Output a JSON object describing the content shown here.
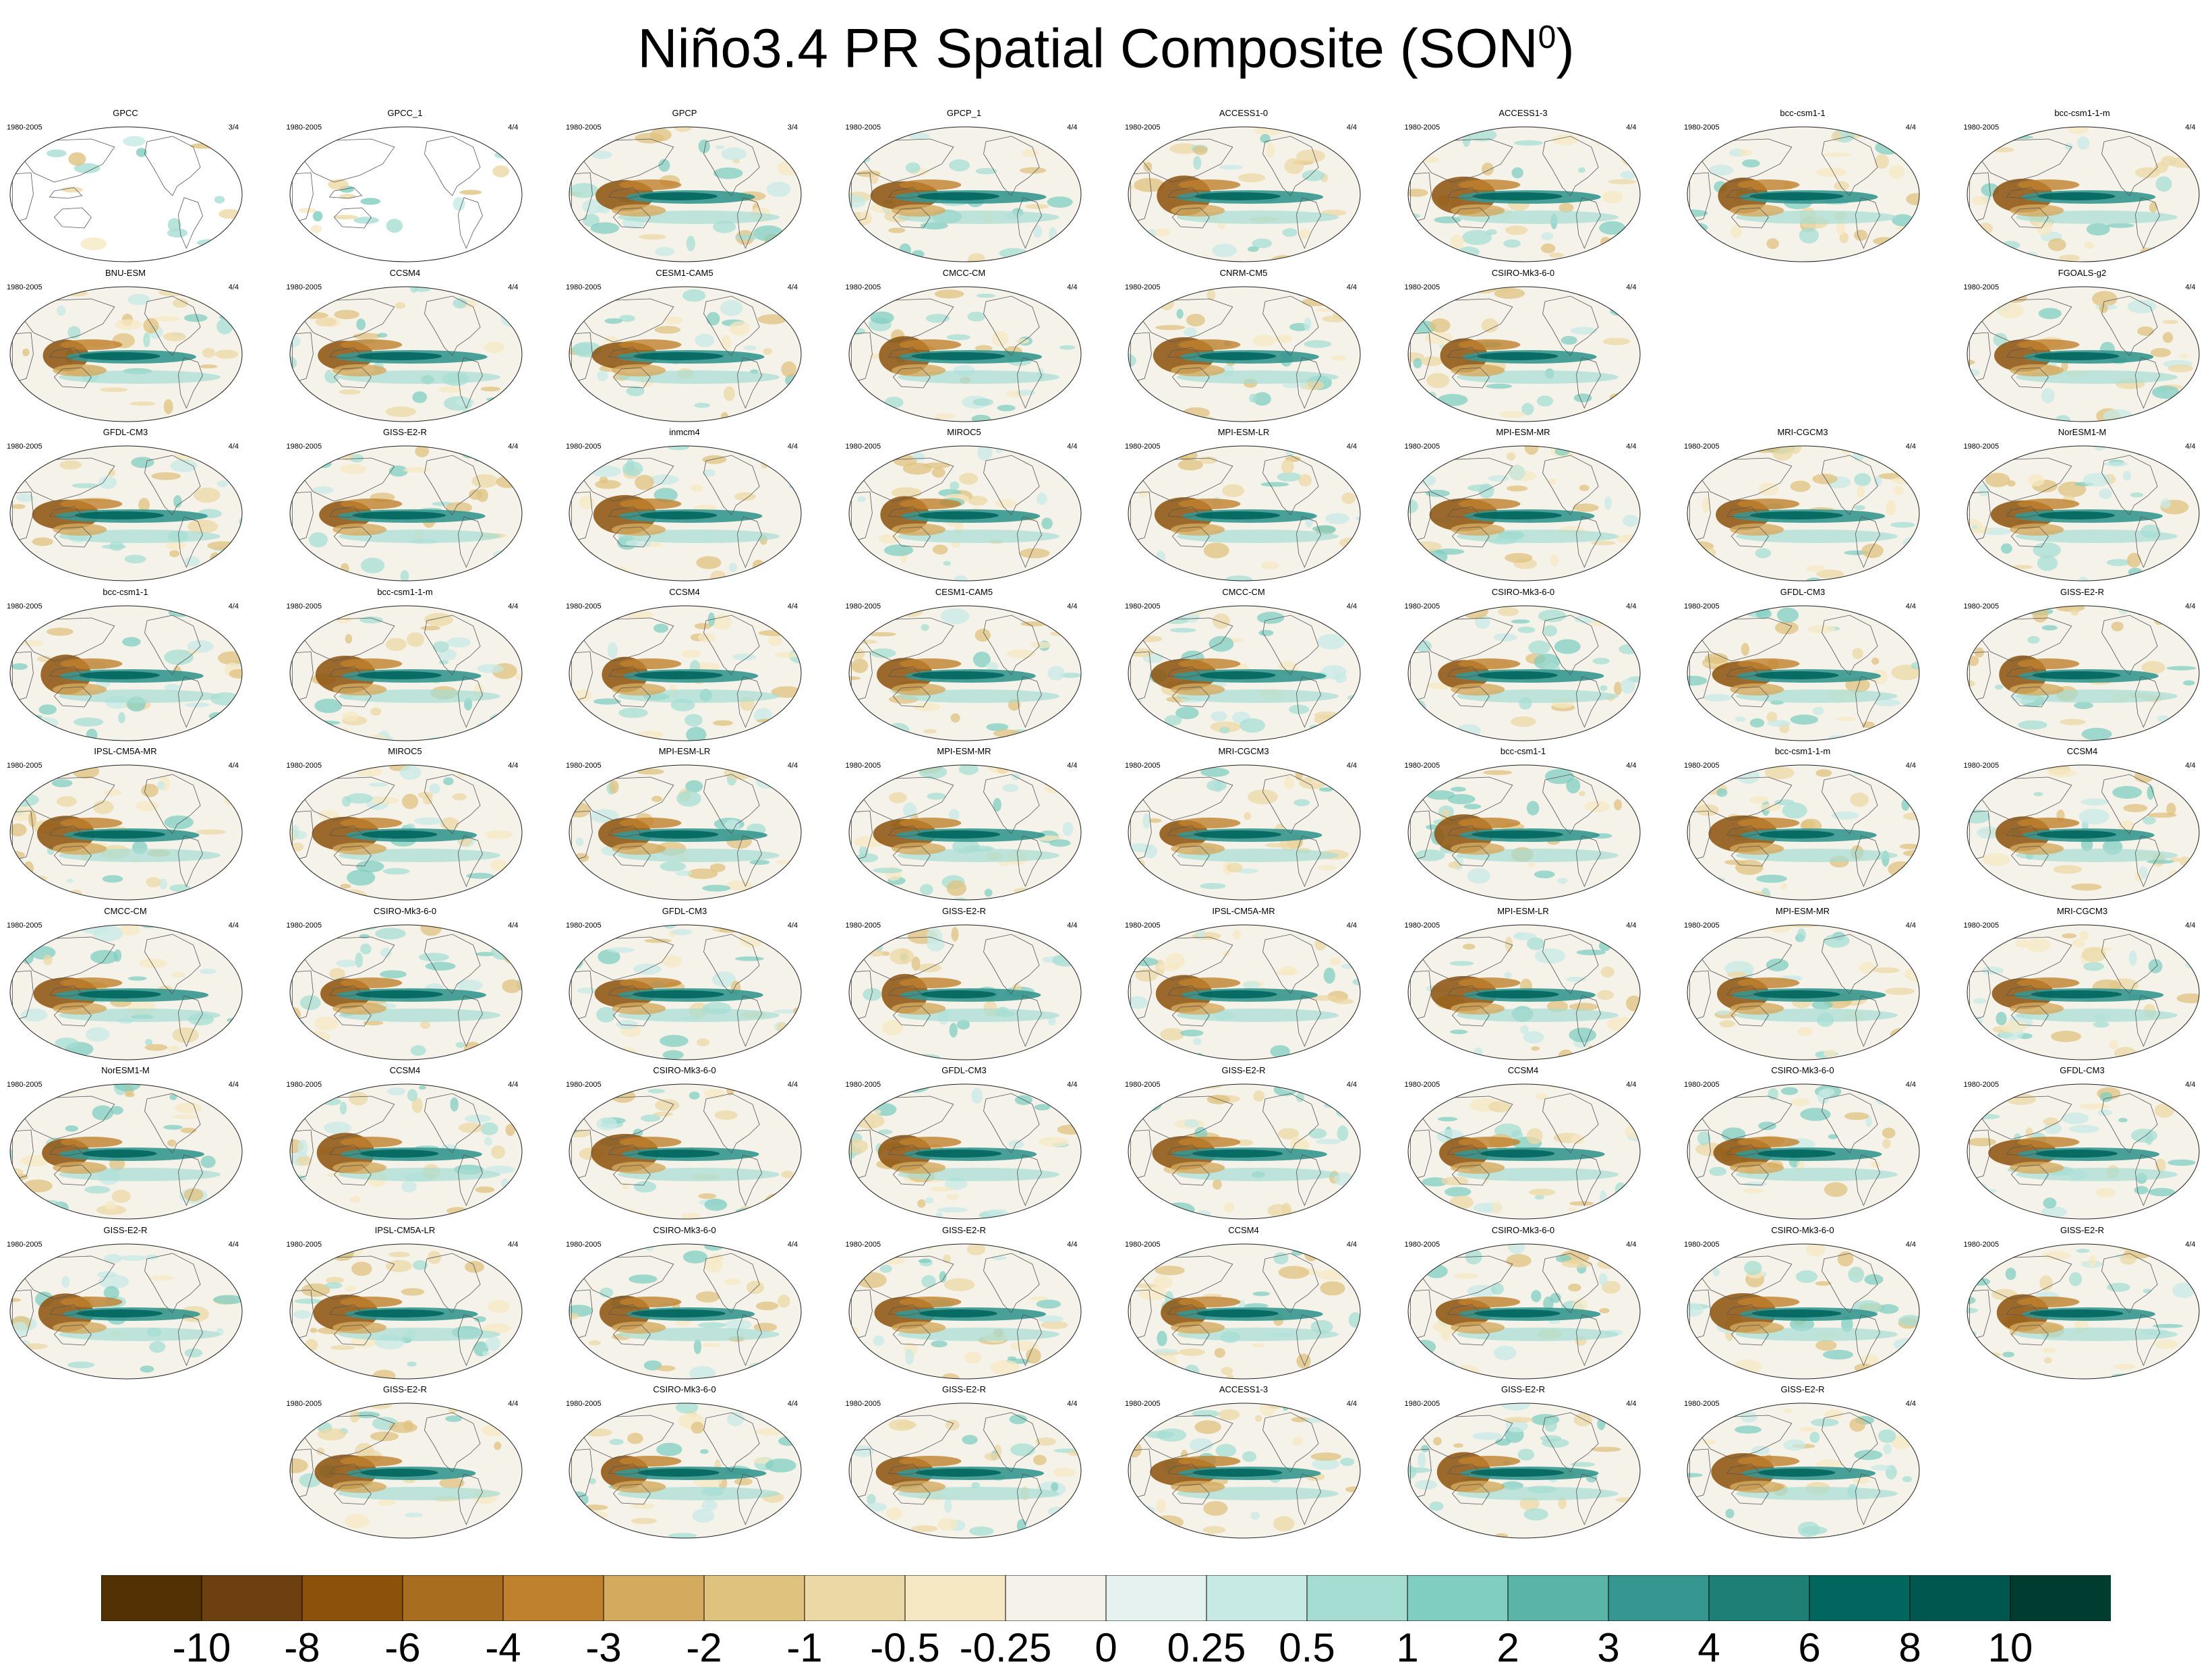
{
  "title": "Niño3.4 PR Spatial Composite (SON",
  "title_superscript": "0",
  "title_suffix": ")",
  "chart_data": {
    "type": "heatmap",
    "title": "Niño3.4 PR Spatial Composite (SON0)",
    "period": "1980-2005",
    "colorbar": {
      "levels": [
        "-10",
        "-8",
        "-6",
        "-4",
        "-3",
        "-2",
        "-1",
        "-0.5",
        "-0.25",
        "0",
        "0.25",
        "0.5",
        "1",
        "2",
        "3",
        "4",
        "6",
        "8",
        "10"
      ],
      "colors": [
        "#543005",
        "#6e4010",
        "#8c510a",
        "#a86d1e",
        "#bf812d",
        "#d4aa5f",
        "#dfc27d",
        "#ecd8a5",
        "#f6e8c3",
        "#f5f2ea",
        "#e6f2ef",
        "#c7eae5",
        "#a6ddd3",
        "#80cdc1",
        "#5ab4a8",
        "#35978f",
        "#1d7f76",
        "#01665e",
        "#00574f",
        "#003c30"
      ]
    },
    "panels": [
      {
        "row": 0,
        "col": 0,
        "name": "GPCC",
        "period": "1980-2005",
        "frac": "3/4",
        "land_only": true
      },
      {
        "row": 0,
        "col": 1,
        "name": "GPCC_1",
        "period": "1980-2005",
        "frac": "4/4",
        "land_only": true
      },
      {
        "row": 0,
        "col": 2,
        "name": "GPCP",
        "period": "1980-2005",
        "frac": "3/4"
      },
      {
        "row": 0,
        "col": 3,
        "name": "GPCP_1",
        "period": "1980-2005",
        "frac": "4/4"
      },
      {
        "row": 0,
        "col": 4,
        "name": "ACCESS1-0",
        "period": "1980-2005",
        "frac": "4/4"
      },
      {
        "row": 0,
        "col": 5,
        "name": "ACCESS1-3",
        "period": "1980-2005",
        "frac": "4/4"
      },
      {
        "row": 0,
        "col": 6,
        "name": "bcc-csm1-1",
        "period": "1980-2005",
        "frac": "4/4"
      },
      {
        "row": 0,
        "col": 7,
        "name": "bcc-csm1-1-m",
        "period": "1980-2005",
        "frac": "4/4"
      },
      {
        "row": 1,
        "col": 0,
        "name": "BNU-ESM",
        "period": "1980-2005",
        "frac": "4/4"
      },
      {
        "row": 1,
        "col": 1,
        "name": "CCSM4",
        "period": "1980-2005",
        "frac": "4/4"
      },
      {
        "row": 1,
        "col": 2,
        "name": "CESM1-CAM5",
        "period": "1980-2005",
        "frac": "4/4"
      },
      {
        "row": 1,
        "col": 3,
        "name": "CMCC-CM",
        "period": "1980-2005",
        "frac": "4/4"
      },
      {
        "row": 1,
        "col": 4,
        "name": "CNRM-CM5",
        "period": "1980-2005",
        "frac": "4/4"
      },
      {
        "row": 1,
        "col": 5,
        "name": "CSIRO-Mk3-6-0",
        "period": "1980-2005",
        "frac": "4/4"
      },
      {
        "row": 1,
        "col": 7,
        "name": "FGOALS-g2",
        "period": "1980-2005",
        "frac": "4/4"
      },
      {
        "row": 2,
        "col": 0,
        "name": "GFDL-CM3",
        "period": "1980-2005",
        "frac": "4/4"
      },
      {
        "row": 2,
        "col": 1,
        "name": "GISS-E2-R",
        "period": "1980-2005",
        "frac": "4/4"
      },
      {
        "row": 2,
        "col": 2,
        "name": "inmcm4",
        "period": "1980-2005",
        "frac": "4/4"
      },
      {
        "row": 2,
        "col": 3,
        "name": "MIROC5",
        "period": "1980-2005",
        "frac": "4/4"
      },
      {
        "row": 2,
        "col": 4,
        "name": "MPI-ESM-LR",
        "period": "1980-2005",
        "frac": "4/4"
      },
      {
        "row": 2,
        "col": 5,
        "name": "MPI-ESM-MR",
        "period": "1980-2005",
        "frac": "4/4"
      },
      {
        "row": 2,
        "col": 6,
        "name": "MRI-CGCM3",
        "period": "1980-2005",
        "frac": "4/4"
      },
      {
        "row": 2,
        "col": 7,
        "name": "NorESM1-M",
        "period": "1980-2005",
        "frac": "4/4"
      },
      {
        "row": 3,
        "col": 0,
        "name": "bcc-csm1-1",
        "period": "1980-2005",
        "frac": "4/4"
      },
      {
        "row": 3,
        "col": 1,
        "name": "bcc-csm1-1-m",
        "period": "1980-2005",
        "frac": "4/4"
      },
      {
        "row": 3,
        "col": 2,
        "name": "CCSM4",
        "period": "1980-2005",
        "frac": "4/4"
      },
      {
        "row": 3,
        "col": 3,
        "name": "CESM1-CAM5",
        "period": "1980-2005",
        "frac": "4/4"
      },
      {
        "row": 3,
        "col": 4,
        "name": "CMCC-CM",
        "period": "1980-2005",
        "frac": "4/4"
      },
      {
        "row": 3,
        "col": 5,
        "name": "CSIRO-Mk3-6-0",
        "period": "1980-2005",
        "frac": "4/4"
      },
      {
        "row": 3,
        "col": 6,
        "name": "GFDL-CM3",
        "period": "1980-2005",
        "frac": "4/4"
      },
      {
        "row": 3,
        "col": 7,
        "name": "GISS-E2-R",
        "period": "1980-2005",
        "frac": "4/4"
      },
      {
        "row": 4,
        "col": 0,
        "name": "IPSL-CM5A-MR",
        "period": "1980-2005",
        "frac": "4/4"
      },
      {
        "row": 4,
        "col": 1,
        "name": "MIROC5",
        "period": "1980-2005",
        "frac": "4/4"
      },
      {
        "row": 4,
        "col": 2,
        "name": "MPI-ESM-LR",
        "period": "1980-2005",
        "frac": "4/4"
      },
      {
        "row": 4,
        "col": 3,
        "name": "MPI-ESM-MR",
        "period": "1980-2005",
        "frac": "4/4"
      },
      {
        "row": 4,
        "col": 4,
        "name": "MRI-CGCM3",
        "period": "1980-2005",
        "frac": "4/4"
      },
      {
        "row": 4,
        "col": 5,
        "name": "bcc-csm1-1",
        "period": "1980-2005",
        "frac": "4/4"
      },
      {
        "row": 4,
        "col": 6,
        "name": "bcc-csm1-1-m",
        "period": "1980-2005",
        "frac": "4/4"
      },
      {
        "row": 4,
        "col": 7,
        "name": "CCSM4",
        "period": "1980-2005",
        "frac": "4/4"
      },
      {
        "row": 5,
        "col": 0,
        "name": "CMCC-CM",
        "period": "1980-2005",
        "frac": "4/4"
      },
      {
        "row": 5,
        "col": 1,
        "name": "CSIRO-Mk3-6-0",
        "period": "1980-2005",
        "frac": "4/4"
      },
      {
        "row": 5,
        "col": 2,
        "name": "GFDL-CM3",
        "period": "1980-2005",
        "frac": "4/4"
      },
      {
        "row": 5,
        "col": 3,
        "name": "GISS-E2-R",
        "period": "1980-2005",
        "frac": "4/4"
      },
      {
        "row": 5,
        "col": 4,
        "name": "IPSL-CM5A-MR",
        "period": "1980-2005",
        "frac": "4/4"
      },
      {
        "row": 5,
        "col": 5,
        "name": "MPI-ESM-LR",
        "period": "1980-2005",
        "frac": "4/4"
      },
      {
        "row": 5,
        "col": 6,
        "name": "MPI-ESM-MR",
        "period": "1980-2005",
        "frac": "4/4"
      },
      {
        "row": 5,
        "col": 7,
        "name": "MRI-CGCM3",
        "period": "1980-2005",
        "frac": "4/4"
      },
      {
        "row": 6,
        "col": 0,
        "name": "NorESM1-M",
        "period": "1980-2005",
        "frac": "4/4"
      },
      {
        "row": 6,
        "col": 1,
        "name": "CCSM4",
        "period": "1980-2005",
        "frac": "4/4"
      },
      {
        "row": 6,
        "col": 2,
        "name": "CSIRO-Mk3-6-0",
        "period": "1980-2005",
        "frac": "4/4"
      },
      {
        "row": 6,
        "col": 3,
        "name": "GFDL-CM3",
        "period": "1980-2005",
        "frac": "4/4"
      },
      {
        "row": 6,
        "col": 4,
        "name": "GISS-E2-R",
        "period": "1980-2005",
        "frac": "4/4"
      },
      {
        "row": 6,
        "col": 5,
        "name": "CCSM4",
        "period": "1980-2005",
        "frac": "4/4"
      },
      {
        "row": 6,
        "col": 6,
        "name": "CSIRO-Mk3-6-0",
        "period": "1980-2005",
        "frac": "4/4"
      },
      {
        "row": 6,
        "col": 7,
        "name": "GFDL-CM3",
        "period": "1980-2005",
        "frac": "4/4"
      },
      {
        "row": 7,
        "col": 0,
        "name": "GISS-E2-R",
        "period": "1980-2005",
        "frac": "4/4"
      },
      {
        "row": 7,
        "col": 1,
        "name": "IPSL-CM5A-LR",
        "period": "1980-2005",
        "frac": "4/4"
      },
      {
        "row": 7,
        "col": 2,
        "name": "CSIRO-Mk3-6-0",
        "period": "1980-2005",
        "frac": "4/4"
      },
      {
        "row": 7,
        "col": 3,
        "name": "GISS-E2-R",
        "period": "1980-2005",
        "frac": "4/4"
      },
      {
        "row": 7,
        "col": 4,
        "name": "CCSM4",
        "period": "1980-2005",
        "frac": "4/4"
      },
      {
        "row": 7,
        "col": 5,
        "name": "CSIRO-Mk3-6-0",
        "period": "1980-2005",
        "frac": "4/4"
      },
      {
        "row": 7,
        "col": 6,
        "name": "CSIRO-Mk3-6-0",
        "period": "1980-2005",
        "frac": "4/4"
      },
      {
        "row": 7,
        "col": 7,
        "name": "GISS-E2-R",
        "period": "1980-2005",
        "frac": "4/4"
      },
      {
        "row": 8,
        "col": 1,
        "name": "GISS-E2-R",
        "period": "1980-2005",
        "frac": "4/4"
      },
      {
        "row": 8,
        "col": 2,
        "name": "CSIRO-Mk3-6-0",
        "period": "1980-2005",
        "frac": "4/4"
      },
      {
        "row": 8,
        "col": 3,
        "name": "GISS-E2-R",
        "period": "1980-2005",
        "frac": "4/4"
      },
      {
        "row": 8,
        "col": 4,
        "name": "ACCESS1-3",
        "period": "1980-2005",
        "frac": "4/4"
      },
      {
        "row": 8,
        "col": 5,
        "name": "GISS-E2-R",
        "period": "1980-2005",
        "frac": "4/4"
      },
      {
        "row": 8,
        "col": 6,
        "name": "GISS-E2-R",
        "period": "1980-2005",
        "frac": "4/4"
      }
    ]
  }
}
